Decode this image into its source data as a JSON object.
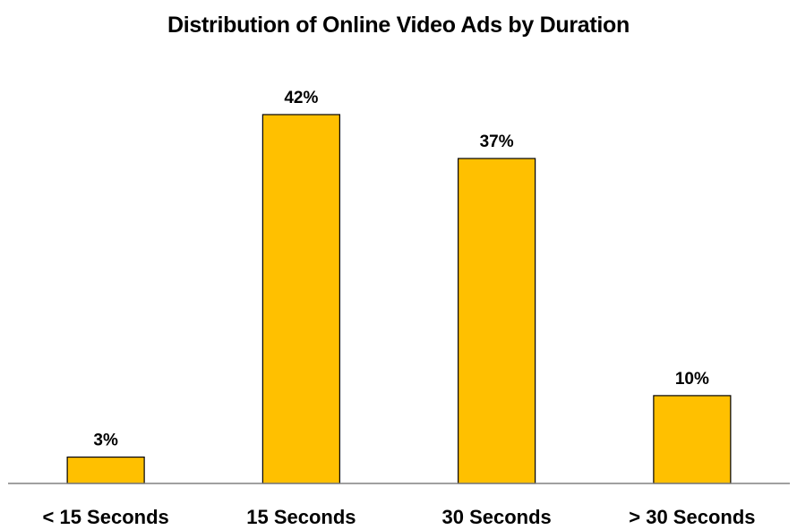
{
  "chart_data": {
    "type": "bar",
    "title": "Distribution of Online Video Ads by Duration",
    "categories": [
      "< 15 Seconds",
      "15 Seconds",
      "30 Seconds",
      "> 30 Seconds"
    ],
    "values": [
      3,
      42,
      37,
      10
    ],
    "value_labels": [
      "3%",
      "42%",
      "37%",
      "10%"
    ],
    "xlabel": "",
    "ylabel": "",
    "ylim": [
      0,
      42
    ],
    "grid": false,
    "legend": "none",
    "colors": {
      "bar_fill": "#FFC000",
      "bar_stroke": "#000000",
      "axis": "#808080"
    }
  }
}
